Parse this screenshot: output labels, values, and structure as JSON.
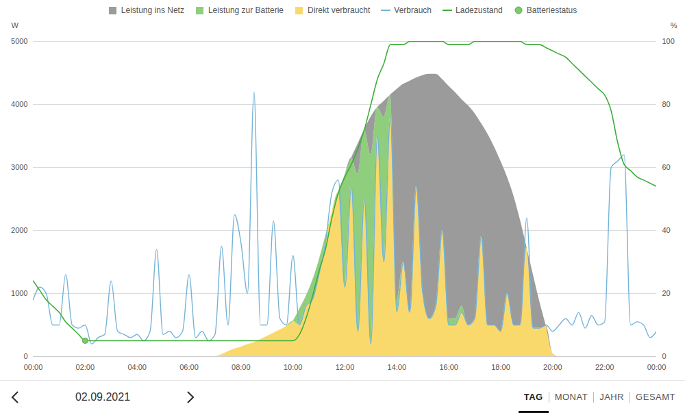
{
  "chart_data": {
    "type": "area",
    "stacked": true,
    "grid": true,
    "legend": "top",
    "ylabel": "W",
    "y2label": "%",
    "x": [
      0,
      0.25,
      0.5,
      0.75,
      1,
      1.25,
      1.5,
      1.75,
      2,
      2.25,
      2.5,
      2.75,
      3,
      3.25,
      3.5,
      3.75,
      4,
      4.25,
      4.5,
      4.75,
      5,
      5.25,
      5.5,
      5.75,
      6,
      6.25,
      6.5,
      6.75,
      7,
      7.25,
      7.5,
      7.75,
      8,
      8.25,
      8.5,
      8.75,
      9,
      9.25,
      9.5,
      9.75,
      10,
      10.25,
      10.5,
      10.75,
      11,
      11.25,
      11.5,
      11.75,
      12,
      12.25,
      12.5,
      12.75,
      13,
      13.25,
      13.5,
      13.75,
      14,
      14.25,
      14.5,
      14.75,
      15,
      15.25,
      15.5,
      15.75,
      16,
      16.25,
      16.5,
      16.75,
      17,
      17.25,
      17.5,
      17.75,
      18,
      18.25,
      18.5,
      18.75,
      19,
      19.25,
      19.5,
      19.75,
      20,
      20.25,
      20.5,
      20.75,
      21,
      21.25,
      21.5,
      21.75,
      22,
      22.25,
      22.5,
      22.75,
      23,
      23.25,
      23.5,
      23.75,
      24
    ],
    "xlim": [
      0,
      24
    ],
    "xticks": [
      {
        "value": 0,
        "label": "00:00"
      },
      {
        "value": 2,
        "label": "02:00"
      },
      {
        "value": 4,
        "label": "04:00"
      },
      {
        "value": 6,
        "label": "06:00"
      },
      {
        "value": 8,
        "label": "08:00"
      },
      {
        "value": 10,
        "label": "10:00"
      },
      {
        "value": 12,
        "label": "12:00"
      },
      {
        "value": 14,
        "label": "14:00"
      },
      {
        "value": 16,
        "label": "16:00"
      },
      {
        "value": 18,
        "label": "18:00"
      },
      {
        "value": 20,
        "label": "20:00"
      },
      {
        "value": 22,
        "label": "22:00"
      },
      {
        "value": 24,
        "label": "00:00"
      }
    ],
    "ylim": [
      0,
      5000
    ],
    "yticks": [
      0,
      1000,
      2000,
      3000,
      4000,
      5000
    ],
    "y2lim": [
      0,
      100
    ],
    "y2ticks": [
      0,
      20,
      40,
      60,
      80,
      100
    ],
    "series": [
      {
        "name": "Leistung ins Netz",
        "type": "area",
        "color": "#9b9b9b",
        "values": [
          0,
          0,
          0,
          0,
          0,
          0,
          0,
          0,
          0,
          0,
          0,
          0,
          0,
          0,
          0,
          0,
          0,
          0,
          0,
          0,
          0,
          0,
          0,
          0,
          0,
          0,
          0,
          0,
          0,
          0,
          0,
          0,
          0,
          0,
          0,
          0,
          0,
          0,
          0,
          0,
          0,
          0,
          0,
          0,
          0,
          0,
          0,
          0,
          0,
          0,
          470,
          0,
          600,
          0,
          250,
          0,
          3340,
          2820,
          3670,
          1720,
          3460,
          3880,
          3680,
          2400,
          3690,
          3590,
          3280,
          3480,
          3260,
          1800,
          3030,
          2830,
          2700,
          1850,
          2050,
          1670,
          0,
          850,
          420,
          0,
          0,
          0,
          0,
          0,
          0,
          0,
          0,
          0,
          0,
          0,
          0,
          0,
          0,
          0,
          0,
          0,
          0
        ]
      },
      {
        "name": "Leistung zur Batterie",
        "type": "area",
        "color": "#8fce7c",
        "values": [
          0,
          0,
          0,
          0,
          0,
          0,
          0,
          0,
          0,
          0,
          0,
          0,
          0,
          0,
          0,
          0,
          0,
          0,
          0,
          0,
          0,
          0,
          0,
          0,
          0,
          0,
          0,
          0,
          0,
          0,
          0,
          0,
          0,
          0,
          0,
          0,
          0,
          0,
          0,
          0,
          0,
          250,
          150,
          300,
          220,
          100,
          0,
          0,
          1780,
          450,
          2500,
          1100,
          3000,
          450,
          2300,
          350,
          200,
          0,
          0,
          0,
          0,
          0,
          0,
          0,
          100,
          100,
          100,
          0,
          0,
          0,
          0,
          0,
          0,
          0,
          0,
          0,
          0,
          0,
          0,
          0,
          0,
          0,
          0,
          0,
          0,
          0,
          0,
          0,
          0,
          0,
          0,
          0,
          0,
          0,
          0,
          0,
          0
        ]
      },
      {
        "name": "Direkt verbraucht",
        "type": "area",
        "color": "#fad96c",
        "values": [
          0,
          0,
          0,
          0,
          0,
          0,
          0,
          0,
          0,
          0,
          0,
          0,
          0,
          0,
          0,
          0,
          0,
          0,
          0,
          0,
          0,
          0,
          0,
          0,
          0,
          0,
          0,
          0,
          0,
          30,
          80,
          120,
          150,
          190,
          220,
          270,
          320,
          370,
          420,
          480,
          560,
          500,
          800,
          900,
          1300,
          1800,
          2280,
          2600,
          1100,
          2700,
          400,
          2500,
          200,
          3500,
          1500,
          3800,
          700,
          1500,
          700,
          2700,
          1000,
          600,
          800,
          2000,
          500,
          500,
          700,
          500,
          600,
          1900,
          500,
          500,
          400,
          1000,
          500,
          500,
          1740,
          450,
          450,
          480,
          50,
          0,
          0,
          0,
          0,
          0,
          0,
          0,
          0,
          0,
          0,
          0,
          0,
          0,
          0,
          0,
          0
        ]
      },
      {
        "name": "Verbrauch",
        "type": "line",
        "color": "#74b3d8",
        "values": [
          900,
          1100,
          1000,
          500,
          500,
          1300,
          500,
          450,
          500,
          200,
          300,
          350,
          1200,
          400,
          350,
          300,
          350,
          250,
          400,
          1700,
          350,
          400,
          300,
          400,
          1300,
          300,
          400,
          250,
          350,
          1750,
          500,
          2250,
          1800,
          1000,
          4200,
          500,
          500,
          2150,
          600,
          500,
          1600,
          500,
          800,
          900,
          1300,
          1800,
          2600,
          2800,
          1100,
          2700,
          400,
          2500,
          200,
          3500,
          1500,
          3800,
          700,
          1500,
          700,
          2700,
          1000,
          600,
          800,
          2000,
          500,
          500,
          700,
          500,
          600,
          1900,
          500,
          500,
          400,
          1000,
          500,
          500,
          2200,
          450,
          450,
          500,
          400,
          500,
          600,
          500,
          700,
          450,
          650,
          500,
          550,
          3000,
          3100,
          3200,
          500,
          550,
          500,
          300,
          400
        ]
      },
      {
        "name": "Ladezustand",
        "type": "line",
        "axis": "y2",
        "color": "#3fae3a",
        "values": [
          24,
          21,
          18,
          16,
          14,
          11,
          9,
          7,
          5,
          5,
          5,
          5,
          5,
          5,
          5,
          5,
          5,
          5,
          5,
          5,
          5,
          5,
          5,
          5,
          5,
          5,
          5,
          5,
          5,
          5,
          5,
          5,
          5,
          5,
          5,
          5,
          5,
          5,
          5,
          5,
          5,
          7,
          12,
          19,
          27,
          34,
          44,
          52,
          57,
          61,
          66,
          72,
          80,
          88,
          93,
          99,
          99,
          99,
          100,
          100,
          100,
          100,
          100,
          100,
          99,
          99,
          99,
          99,
          100,
          100,
          100,
          100,
          100,
          100,
          100,
          100,
          99,
          99,
          99,
          98,
          97,
          96,
          95,
          93,
          91,
          89,
          87,
          85,
          83,
          78,
          68,
          61,
          59,
          57,
          56,
          55,
          54
        ]
      },
      {
        "name": "Batteriestatus",
        "type": "scatter",
        "axis": "y2",
        "marker": "circle",
        "color": "#7cc96e",
        "values": [
          null,
          null,
          null,
          null,
          null,
          null,
          null,
          null,
          5,
          null,
          null,
          null,
          null,
          null,
          null,
          null,
          null,
          null,
          null,
          null,
          null,
          null,
          null,
          null,
          null,
          null,
          null,
          null,
          null,
          null,
          null,
          null,
          null,
          null,
          null,
          null,
          null,
          null,
          null,
          null,
          null,
          null,
          null,
          null,
          null,
          null,
          null,
          null,
          null,
          null,
          null,
          null,
          null,
          null,
          null,
          null,
          null,
          null,
          null,
          null,
          null,
          null,
          null,
          null,
          null,
          null,
          null,
          null,
          null,
          null,
          null,
          null,
          null,
          null,
          null,
          null,
          null,
          null,
          null,
          null,
          null,
          null,
          null,
          null,
          null,
          null,
          null,
          null,
          null,
          null,
          null,
          null,
          null,
          null,
          null,
          null,
          null
        ]
      }
    ]
  },
  "navigation": {
    "date": "02.09.2021",
    "views": [
      "TAG",
      "MONAT",
      "JAHR",
      "GESAMT"
    ],
    "active": "TAG"
  }
}
